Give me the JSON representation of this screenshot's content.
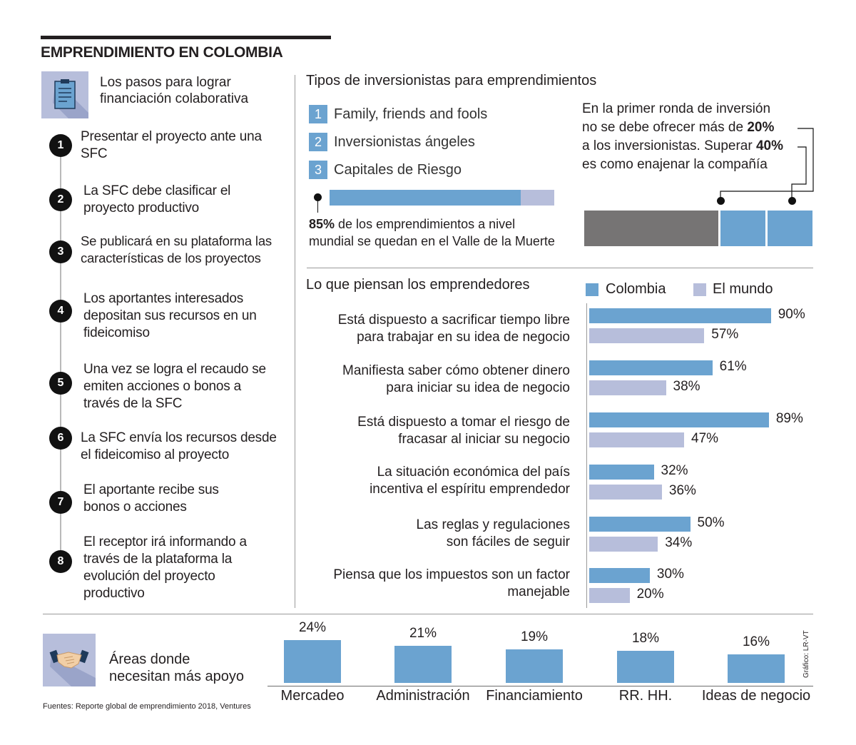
{
  "title": "EMPRENDIMIENTO EN COLOMBIA",
  "steps": {
    "title_line1": "Los pasos para lograr",
    "title_line2": "financiación colaborativa",
    "items": [
      {
        "num": "1",
        "text": "Presentar el proyecto ante una SFC"
      },
      {
        "num": "2",
        "text": "La SFC debe clasificar el proyecto productivo"
      },
      {
        "num": "3",
        "text": "Se publicará en su plataforma las características de los proyectos"
      },
      {
        "num": "4",
        "text": "Los aportantes interesados depositan sus recursos en un fideicomiso"
      },
      {
        "num": "5",
        "text": "Una vez se logra el recaudo se emiten acciones o bonos a través de la SFC"
      },
      {
        "num": "6",
        "text": "La SFC envía los recursos desde el fideicomiso al proyecto"
      },
      {
        "num": "7",
        "text": "El aportante recibe sus bonos o acciones"
      },
      {
        "num": "8",
        "text": "El receptor irá informando a través de la plataforma la evolución del proyecto productivo"
      }
    ]
  },
  "investors": {
    "title": "Tipos de inversionistas para emprendimientos",
    "types": [
      {
        "num": "1",
        "label": "Family, friends and fools"
      },
      {
        "num": "2",
        "label": "Inversionistas ángeles"
      },
      {
        "num": "3",
        "label": "Capitales de Riesgo"
      }
    ],
    "valley_pct": 85,
    "valley_bold": "85%",
    "valley_text_1": " de los emprendimientos a nivel",
    "valley_text_2": "mundial se quedan en el Valle de la Muerte",
    "round_line1": "En la primer ronda de inversión",
    "round_line2a": "no se debe ofrecer más de ",
    "round_line2b": "20%",
    "round_line3a": "a los inversionistas. Superar ",
    "round_line3b": "40%",
    "round_line4": "es como enajenar la compañía",
    "equity_shares": [
      60,
      20,
      20
    ],
    "colors": {
      "accent": "#6ba3d0",
      "light": "#b7bedb",
      "gray": "#767474"
    }
  },
  "chart_data": [
    {
      "type": "bar",
      "orientation": "horizontal",
      "title": "Lo que piensan los emprendedores",
      "categories": [
        "Está dispuesto a sacrificar tiempo libre para trabajar en su idea de negocio",
        "Manifiesta saber cómo obtener dinero para iniciar su idea de negocio",
        "Está dispuesto a tomar el riesgo de fracasar al iniciar su negocio",
        "La situación económica del país incentiva el espíritu emprendedor",
        "Las reglas y regulaciones son fáciles de seguir",
        "Piensa que los impuestos son un factor manejable"
      ],
      "category_lines": [
        [
          "Está dispuesto a sacrificar tiempo libre",
          "para trabajar en su idea de negocio"
        ],
        [
          "Manifiesta saber cómo obtener dinero",
          "para iniciar su idea de negocio"
        ],
        [
          "Está dispuesto a tomar el riesgo de",
          "fracasar al iniciar su negocio"
        ],
        [
          "La situación económica del país",
          "incentiva el espíritu emprendedor"
        ],
        [
          "Las reglas y regulaciones",
          "son fáciles de seguir"
        ],
        [
          "Piensa que los impuestos son un factor",
          "manejable"
        ]
      ],
      "series": [
        {
          "name": "Colombia",
          "color": "#6ba3d0",
          "values": [
            90,
            61,
            89,
            32,
            50,
            30
          ],
          "labels": [
            "90%",
            "61%",
            "89%",
            "32%",
            "50%",
            "30%"
          ]
        },
        {
          "name": "El mundo",
          "color": "#b7bedb",
          "values": [
            57,
            38,
            47,
            36,
            34,
            20
          ],
          "labels": [
            "57%",
            "38%",
            "47%",
            "36%",
            "34%",
            "20%"
          ]
        }
      ],
      "xlim": [
        0,
        100
      ]
    },
    {
      "type": "bar",
      "title": "Áreas donde necesitan más apoyo",
      "categories": [
        "Mercadeo",
        "Administración",
        "Financiamiento",
        "RR. HH.",
        "Ideas de negocio"
      ],
      "values": [
        24,
        21,
        19,
        18,
        16
      ],
      "labels": [
        "24%",
        "21%",
        "19%",
        "18%",
        "16%"
      ],
      "color": "#6ba3d0"
    }
  ],
  "areas": {
    "title_line1": "Áreas donde",
    "title_line2": "necesitan más apoyo"
  },
  "source": "Fuentes: Reporte global de emprendimiento 2018, Ventures",
  "credit": "Gráfico: LR-VT"
}
